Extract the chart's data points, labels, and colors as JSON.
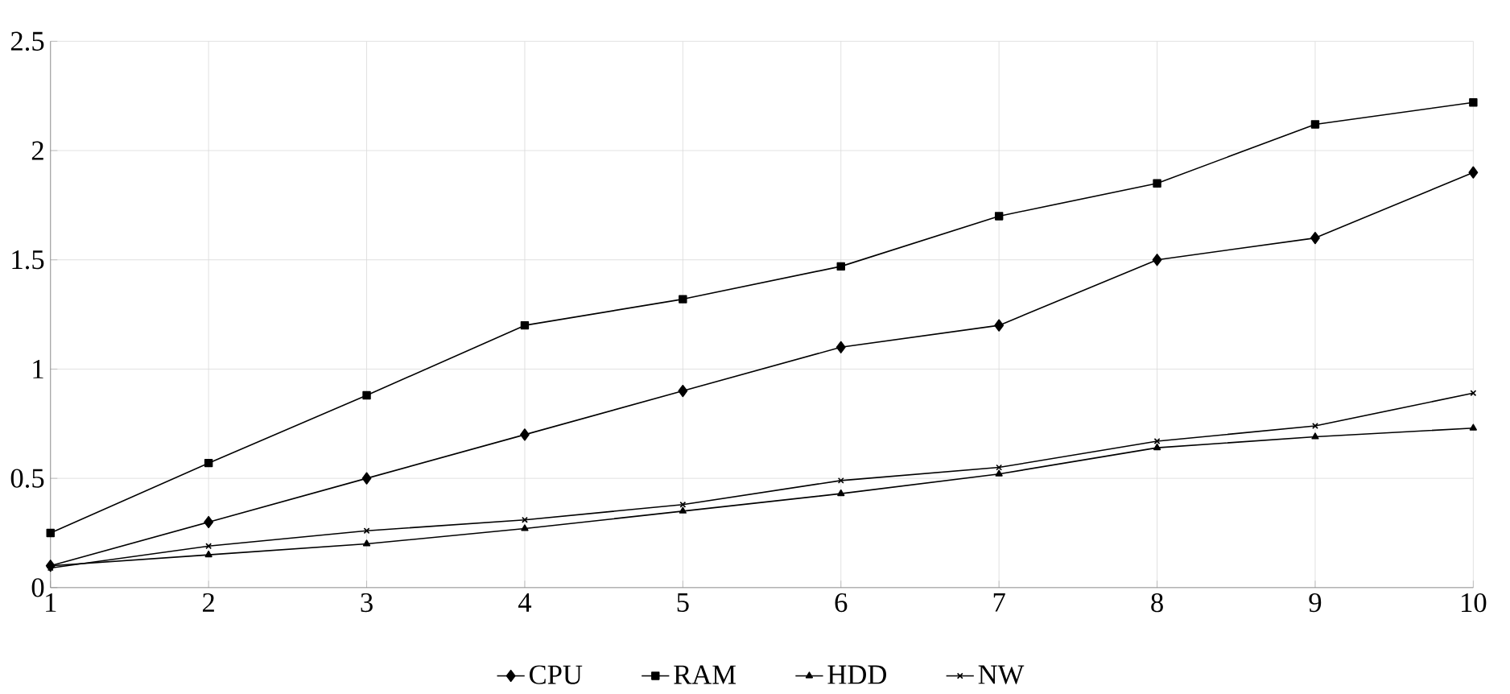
{
  "chart_data": {
    "type": "line",
    "x": [
      1,
      2,
      3,
      4,
      5,
      6,
      7,
      8,
      9,
      10
    ],
    "xlim": [
      1,
      10
    ],
    "xticks": [
      1,
      2,
      3,
      4,
      5,
      6,
      7,
      8,
      9,
      10
    ],
    "ylim": [
      0,
      2.5
    ],
    "yticks": [
      0,
      0.5,
      1,
      1.5,
      2,
      2.5
    ],
    "grid": true,
    "legend": "bottom",
    "line_style": "solid",
    "series": [
      {
        "name": "CPU",
        "color": "#000000",
        "marker": "diamond",
        "values": [
          0.1,
          0.3,
          0.5,
          0.7,
          0.9,
          1.1,
          1.2,
          1.5,
          1.6,
          1.9
        ]
      },
      {
        "name": "RAM",
        "color": "#000000",
        "marker": "square",
        "values": [
          0.25,
          0.57,
          0.88,
          1.2,
          1.32,
          1.47,
          1.7,
          1.85,
          2.12,
          2.22
        ]
      },
      {
        "name": "HDD",
        "color": "#000000",
        "marker": "triangle",
        "values": [
          0.1,
          0.15,
          0.2,
          0.27,
          0.35,
          0.43,
          0.52,
          0.64,
          0.69,
          0.73
        ]
      },
      {
        "name": "NW",
        "color": "#000000",
        "marker": "cross",
        "values": [
          0.09,
          0.19,
          0.26,
          0.31,
          0.38,
          0.49,
          0.55,
          0.67,
          0.74,
          0.89
        ]
      }
    ]
  }
}
